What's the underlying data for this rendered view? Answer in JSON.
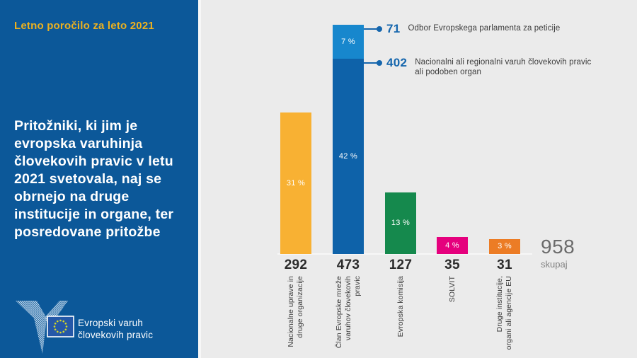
{
  "sidebar": {
    "report_title": "Letno poročilo za leto 2021",
    "headline": "Pritožniki, ki jim je\nevropska varuhinja\nčlovekovih pravic v letu\n2021 svetovala, naj se\nobrnejo na druge\ninstitucije in organe, ter\nposredovane pritožbe",
    "logo": {
      "line1": "Evropski varuh",
      "line2": "človekovih pravic"
    }
  },
  "colors": {
    "sidebar_bg": "#0c5899",
    "panel_bg": "#ebebeb",
    "report_title": "#ecb11f",
    "headline_text": "#ffffff",
    "annotation_blue": "#1566ad",
    "annotation_text": "#3c3c3c",
    "value_text": "#2b2b2b",
    "total_text": "#6b6b6b",
    "bar_yellow": "#f8b133",
    "bar_dark_blue": "#0e62a9",
    "bar_light_blue": "#1787cd",
    "bar_green": "#15894d",
    "bar_pink": "#e5007d",
    "bar_orange": "#ec7c25"
  },
  "chart_data": {
    "type": "bar",
    "title": "",
    "xlabel": "",
    "ylabel": "",
    "ylim": [
      0,
      500
    ],
    "grid": false,
    "legend": "none",
    "categories": [
      "Nacionalne uprave in druge organizacije",
      "Član Evropske mreže varuhov človekovih pravic",
      "Evropska komisija",
      "SOLVIT",
      "Druge institucije, organi ali agencije EU"
    ],
    "values": [
      292,
      473,
      127,
      35,
      31
    ],
    "bars": [
      {
        "category": "Nacionalne uprave in\ndruge organizacije",
        "value": 292,
        "segments": [
          {
            "value": 292,
            "pct_label": "31 %",
            "color": "#f8b133"
          }
        ]
      },
      {
        "category": "Član Evropske mreže\nvaruhov človekovih\npravic",
        "value": 473,
        "segments": [
          {
            "value": 402,
            "pct_label": "42 %",
            "color": "#0e62a9",
            "callout": "Nacionalni ali regionalni varuh človekovih pravic\nali podoben organ"
          },
          {
            "value": 71,
            "pct_label": "7 %",
            "color": "#1787cd",
            "callout": "Odbor Evropskega parlamenta za peticije"
          }
        ]
      },
      {
        "category": "Evropska komisija",
        "value": 127,
        "segments": [
          {
            "value": 127,
            "pct_label": "13 %",
            "color": "#15894d"
          }
        ]
      },
      {
        "category": "SOLVIT",
        "value": 35,
        "segments": [
          {
            "value": 35,
            "pct_label": "4 %",
            "color": "#e5007d"
          }
        ]
      },
      {
        "category": "Druge institucije,\norgani ali agencije EU",
        "value": 31,
        "segments": [
          {
            "value": 31,
            "pct_label": "3 %",
            "color": "#ec7c25"
          }
        ]
      }
    ],
    "total": {
      "value": "958",
      "label": "skupaj"
    }
  }
}
